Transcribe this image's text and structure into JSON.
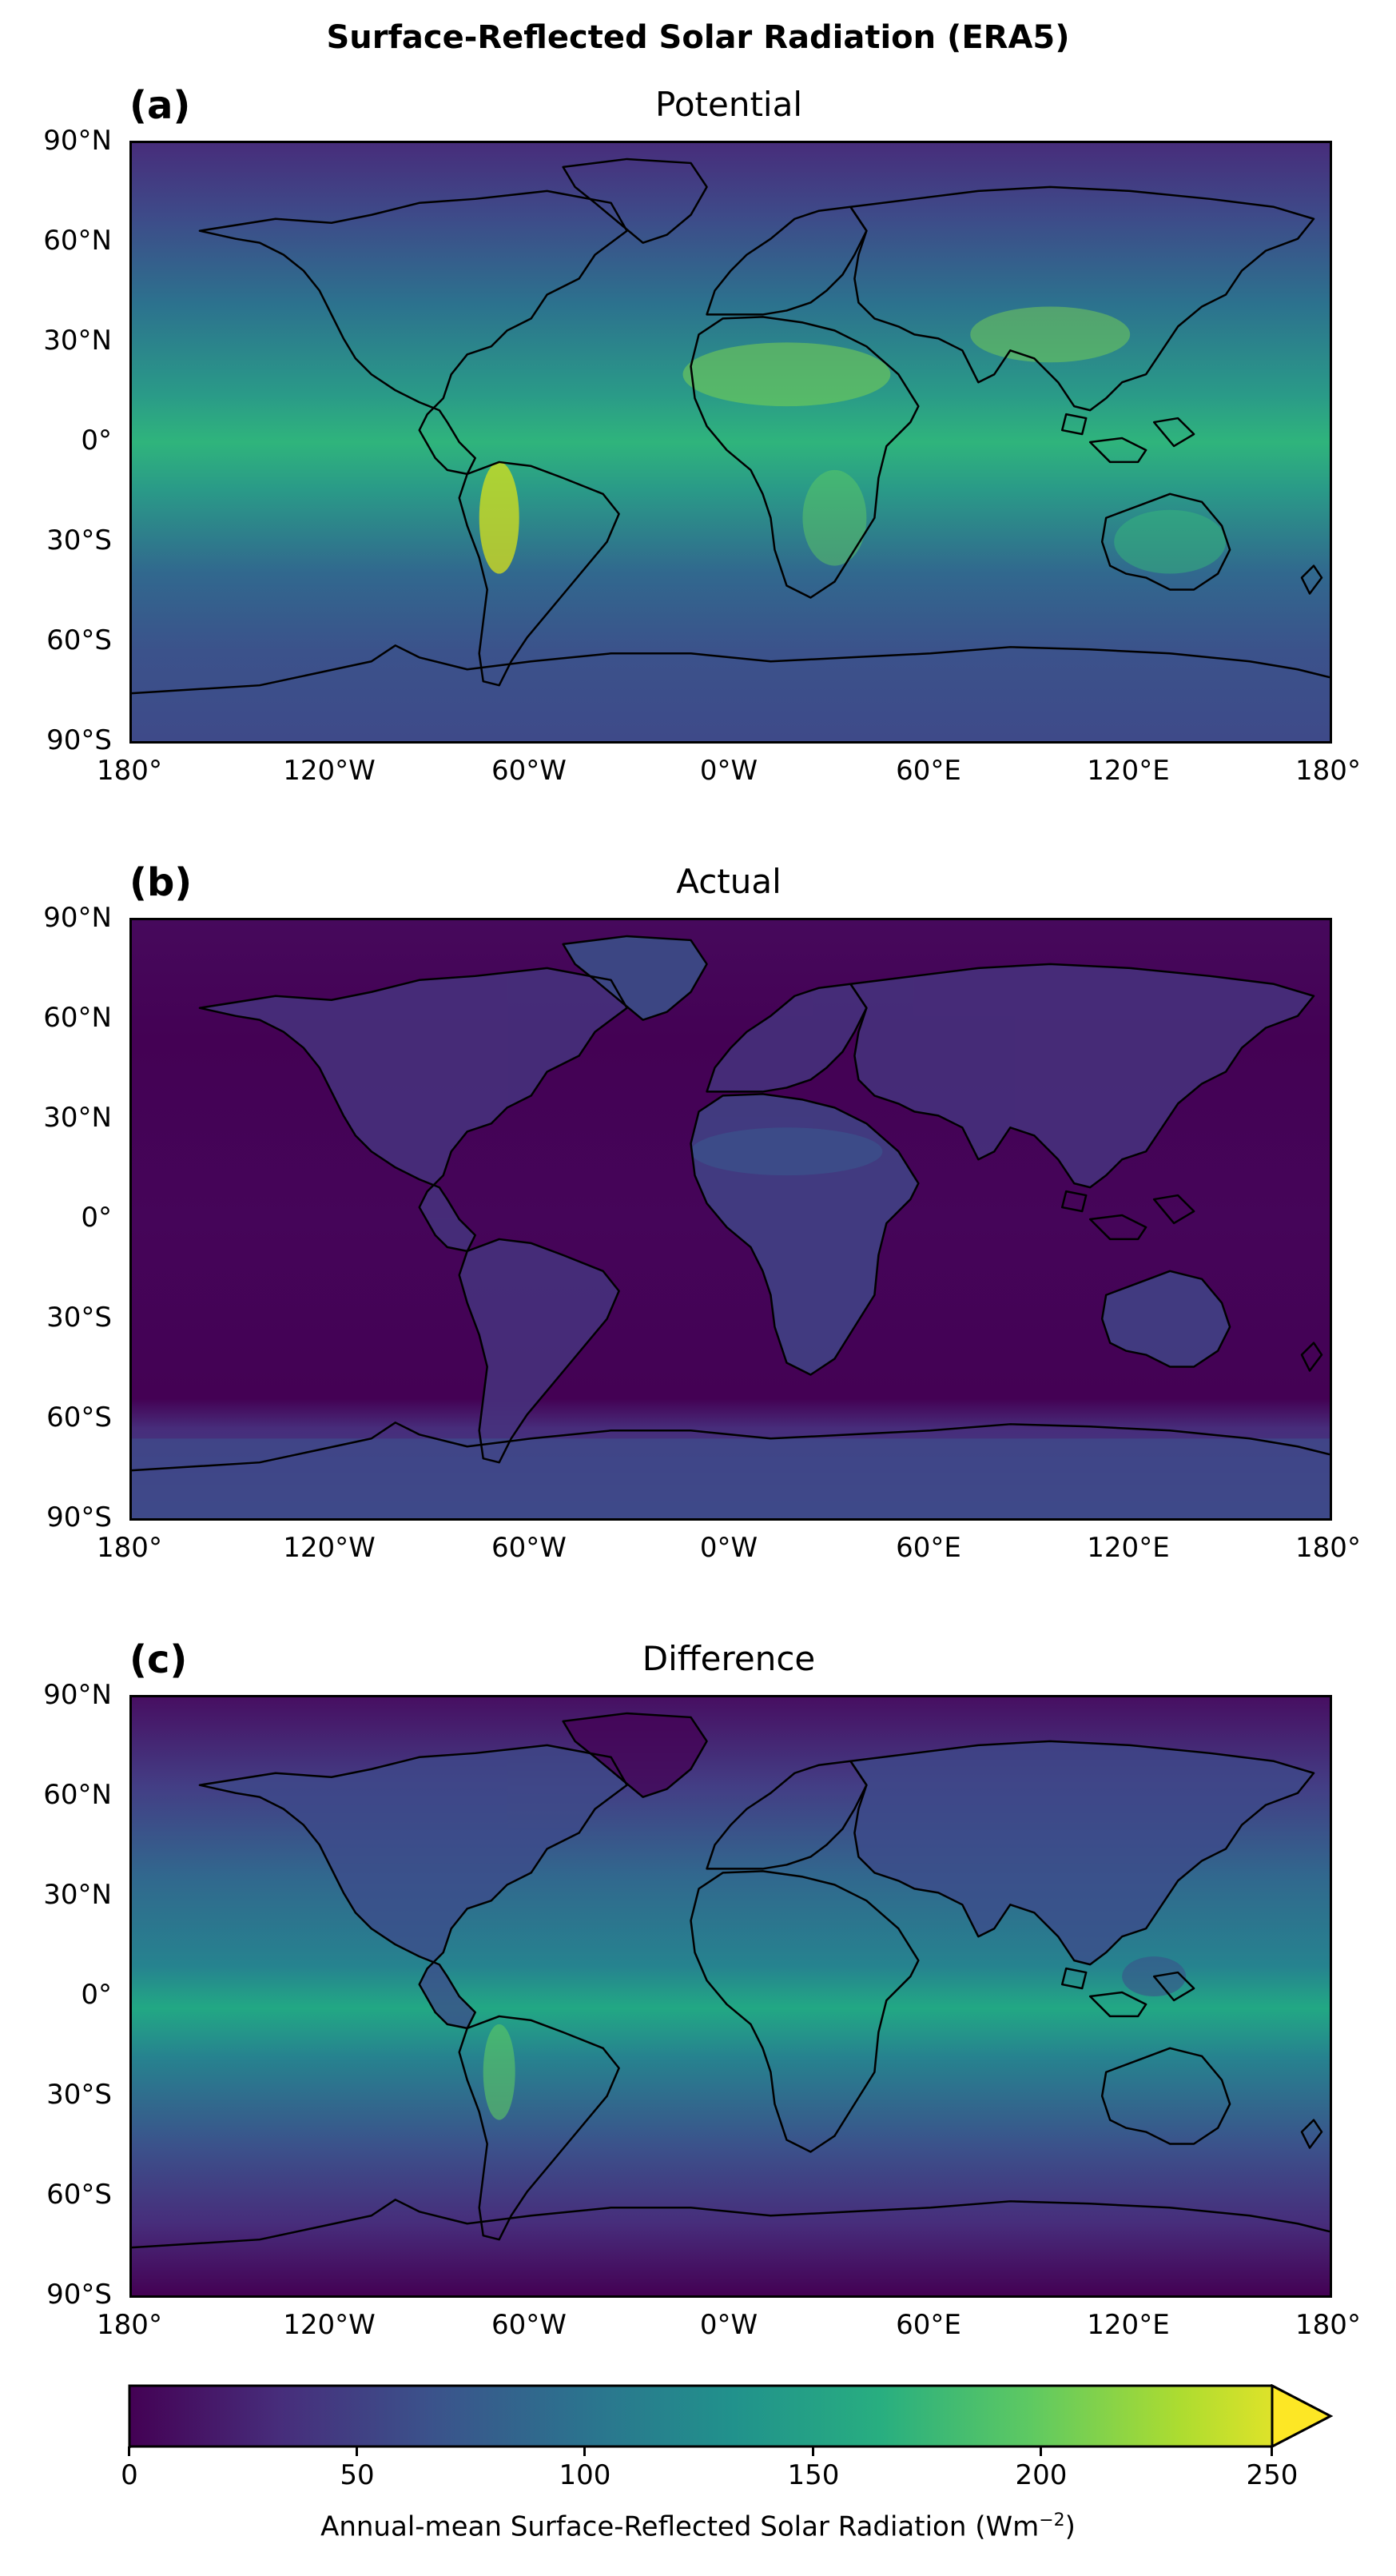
{
  "figure": {
    "title": "Surface-Reflected Solar Radiation (ERA5)"
  },
  "panels": [
    {
      "label": "(a)",
      "title": "Potential",
      "palette": "bright"
    },
    {
      "label": "(b)",
      "title": "Actual",
      "palette": "dark"
    },
    {
      "label": "(c)",
      "title": "Difference",
      "palette": "mid"
    }
  ],
  "axes": {
    "lat_ticks": [
      "90°N",
      "60°N",
      "30°N",
      "0°",
      "30°S",
      "60°S",
      "90°S"
    ],
    "lon_ticks": [
      "180°",
      "120°W",
      "60°W",
      "0°W",
      "60°E",
      "120°E",
      "180°"
    ]
  },
  "colorbar": {
    "ticks": [
      "0",
      "50",
      "100",
      "150",
      "200",
      "250"
    ],
    "range": [
      0,
      250
    ],
    "extend": "max",
    "label_main": "Annual-mean Surface-Reflected Solar Radiation (Wm",
    "label_exp": "−2",
    "label_close": ")",
    "colormap": [
      "#440154",
      "#472d7b",
      "#3b528b",
      "#2c728e",
      "#21918c",
      "#28ae80",
      "#5ec962",
      "#addc30",
      "#fde725"
    ]
  }
}
